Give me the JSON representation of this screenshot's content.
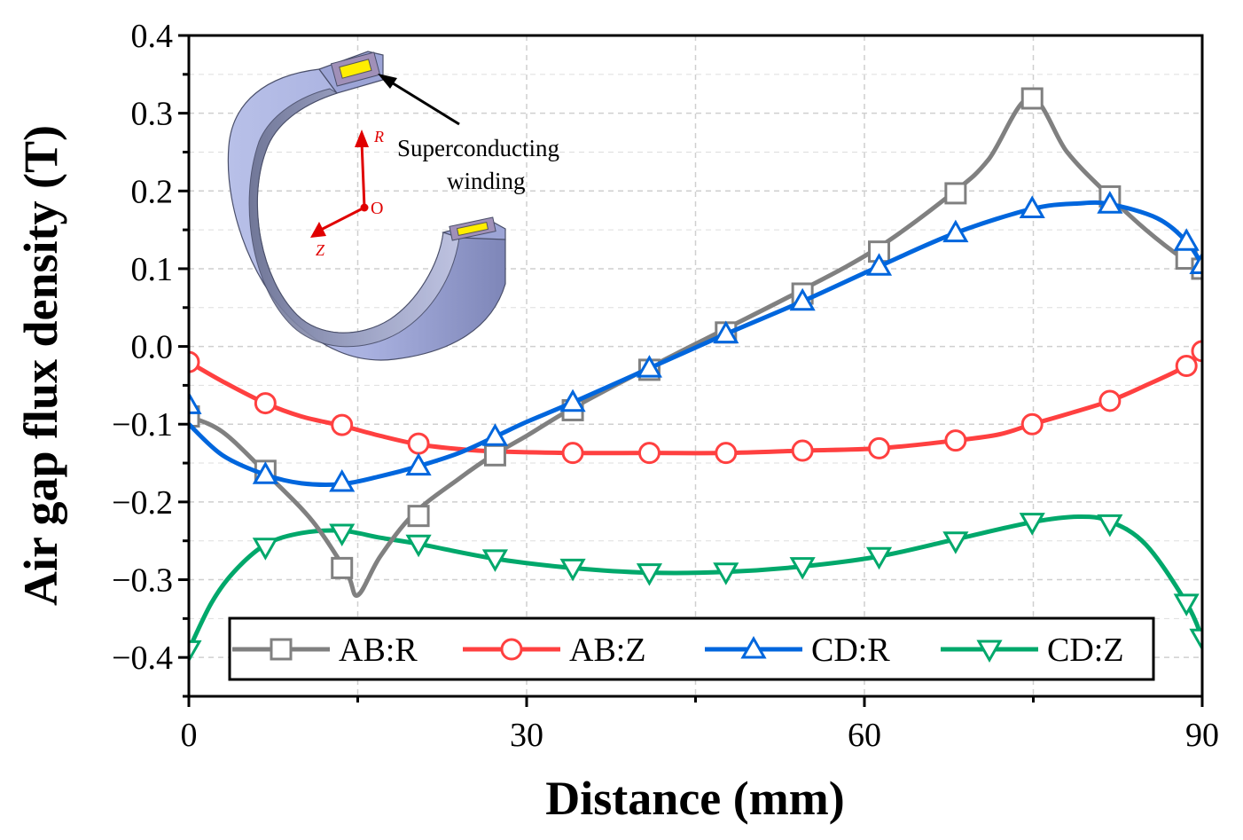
{
  "chart_data": {
    "type": "line",
    "title": "",
    "xlabel": "Distance (mm)",
    "ylabel": "Air gap flux density (T)",
    "xlim": [
      0,
      90
    ],
    "ylim": [
      -0.45,
      0.4
    ],
    "x_ticks": [
      0,
      30,
      60,
      90
    ],
    "x_tick_labels": [
      "0",
      "30",
      "60",
      "90"
    ],
    "y_ticks": [
      -0.4,
      -0.3,
      -0.2,
      -0.1,
      0.0,
      0.1,
      0.2,
      0.3,
      0.4
    ],
    "y_tick_labels": [
      "−0.4",
      "−0.3",
      "−0.2",
      "−0.1",
      "0.0",
      "0.1",
      "0.2",
      "0.3",
      "0.4"
    ],
    "grid": true,
    "legend_position": "bottom",
    "series": [
      {
        "name": "AB:R",
        "color": "#808080",
        "marker": "square",
        "curve": [
          [
            0,
            -0.09
          ],
          [
            3,
            -0.11
          ],
          [
            7,
            -0.165
          ],
          [
            11,
            -0.225
          ],
          [
            14,
            -0.29
          ],
          [
            15,
            -0.32
          ],
          [
            17,
            -0.27
          ],
          [
            20,
            -0.215
          ],
          [
            24,
            -0.17
          ],
          [
            27,
            -0.14
          ],
          [
            30,
            -0.115
          ],
          [
            34,
            -0.08
          ],
          [
            40.5,
            -0.03
          ],
          [
            47.3,
            0.02
          ],
          [
            54.1,
            0.07
          ],
          [
            61,
            0.125
          ],
          [
            67.8,
            0.197
          ],
          [
            71,
            0.24
          ],
          [
            74.7,
            0.32
          ],
          [
            78,
            0.25
          ],
          [
            81.5,
            0.197
          ],
          [
            85,
            0.15
          ],
          [
            88.3,
            0.113
          ],
          [
            90,
            0.1
          ]
        ],
        "markers": [
          [
            0,
            -0.09
          ],
          [
            6.8,
            -0.16
          ],
          [
            13.6,
            -0.285
          ],
          [
            20.4,
            -0.218
          ],
          [
            27.2,
            -0.14
          ],
          [
            34.1,
            -0.082
          ],
          [
            40.9,
            -0.03
          ],
          [
            47.7,
            0.018
          ],
          [
            54.5,
            0.068
          ],
          [
            61.3,
            0.122
          ],
          [
            68.1,
            0.197
          ],
          [
            74.9,
            0.319
          ],
          [
            81.8,
            0.193
          ],
          [
            88.6,
            0.113
          ],
          [
            90,
            0.1
          ]
        ]
      },
      {
        "name": "AB:Z",
        "color": "#ff4040",
        "marker": "circle",
        "curve": [
          [
            0,
            -0.02
          ],
          [
            3,
            -0.045
          ],
          [
            6.8,
            -0.073
          ],
          [
            10,
            -0.09
          ],
          [
            13.6,
            -0.102
          ],
          [
            17,
            -0.115
          ],
          [
            20.4,
            -0.126
          ],
          [
            24,
            -0.132
          ],
          [
            27.2,
            -0.135
          ],
          [
            34,
            -0.137
          ],
          [
            40.9,
            -0.137
          ],
          [
            47.7,
            -0.137
          ],
          [
            54.5,
            -0.134
          ],
          [
            61.3,
            -0.131
          ],
          [
            68.1,
            -0.121
          ],
          [
            72,
            -0.113
          ],
          [
            74.9,
            -0.1
          ],
          [
            78,
            -0.087
          ],
          [
            81.8,
            -0.07
          ],
          [
            85,
            -0.05
          ],
          [
            88.6,
            -0.025
          ],
          [
            90,
            -0.006
          ]
        ],
        "markers": [
          [
            0,
            -0.02
          ],
          [
            6.8,
            -0.073
          ],
          [
            13.6,
            -0.101
          ],
          [
            20.4,
            -0.125
          ],
          [
            27.2,
            -0.136
          ],
          [
            34.1,
            -0.137
          ],
          [
            40.9,
            -0.137
          ],
          [
            47.7,
            -0.137
          ],
          [
            54.5,
            -0.134
          ],
          [
            61.3,
            -0.131
          ],
          [
            68.1,
            -0.121
          ],
          [
            74.9,
            -0.1
          ],
          [
            81.8,
            -0.07
          ],
          [
            88.6,
            -0.025
          ],
          [
            90,
            -0.006
          ]
        ]
      },
      {
        "name": "CD:R",
        "color": "#0066dd",
        "marker": "triangle-up",
        "curve": [
          [
            0,
            -0.1
          ],
          [
            3,
            -0.14
          ],
          [
            6.8,
            -0.165
          ],
          [
            10,
            -0.176
          ],
          [
            13.6,
            -0.177
          ],
          [
            17,
            -0.167
          ],
          [
            20.4,
            -0.154
          ],
          [
            24,
            -0.137
          ],
          [
            27.2,
            -0.116
          ],
          [
            30,
            -0.097
          ],
          [
            34.1,
            -0.072
          ],
          [
            40.9,
            -0.028
          ],
          [
            47.7,
            0.016
          ],
          [
            54.5,
            0.058
          ],
          [
            61.3,
            0.103
          ],
          [
            68.1,
            0.146
          ],
          [
            74.9,
            0.177
          ],
          [
            79,
            0.184
          ],
          [
            81.8,
            0.183
          ],
          [
            86,
            0.165
          ],
          [
            88.6,
            0.135
          ],
          [
            90,
            0.105
          ]
        ],
        "markers": [
          [
            0,
            -0.075
          ],
          [
            6.8,
            -0.165
          ],
          [
            13.6,
            -0.175
          ],
          [
            20.4,
            -0.154
          ],
          [
            27.2,
            -0.116
          ],
          [
            34.1,
            -0.072
          ],
          [
            40.9,
            -0.028
          ],
          [
            47.7,
            0.016
          ],
          [
            54.5,
            0.058
          ],
          [
            61.3,
            0.103
          ],
          [
            68.1,
            0.146
          ],
          [
            74.9,
            0.177
          ],
          [
            81.8,
            0.183
          ],
          [
            88.6,
            0.135
          ],
          [
            90,
            0.105
          ]
        ]
      },
      {
        "name": "CD:Z",
        "color": "#00a86b",
        "marker": "triangle-down",
        "curve": [
          [
            0,
            -0.39
          ],
          [
            2,
            -0.33
          ],
          [
            4,
            -0.29
          ],
          [
            6.8,
            -0.255
          ],
          [
            10,
            -0.24
          ],
          [
            13.6,
            -0.237
          ],
          [
            17,
            -0.246
          ],
          [
            20.4,
            -0.254
          ],
          [
            27.2,
            -0.273
          ],
          [
            34.1,
            -0.285
          ],
          [
            40.9,
            -0.291
          ],
          [
            47.7,
            -0.29
          ],
          [
            54.5,
            -0.283
          ],
          [
            61.3,
            -0.27
          ],
          [
            68.1,
            -0.248
          ],
          [
            74.9,
            -0.226
          ],
          [
            79,
            -0.219
          ],
          [
            81.8,
            -0.225
          ],
          [
            85,
            -0.255
          ],
          [
            88.6,
            -0.33
          ],
          [
            90,
            -0.375
          ]
        ],
        "markers": [
          [
            0,
            -0.39
          ],
          [
            6.8,
            -0.258
          ],
          [
            13.6,
            -0.24
          ],
          [
            20.4,
            -0.254
          ],
          [
            27.2,
            -0.273
          ],
          [
            34.1,
            -0.285
          ],
          [
            40.9,
            -0.291
          ],
          [
            47.7,
            -0.29
          ],
          [
            54.5,
            -0.283
          ],
          [
            61.3,
            -0.27
          ],
          [
            68.1,
            -0.25
          ],
          [
            74.9,
            -0.226
          ],
          [
            81.8,
            -0.228
          ],
          [
            88.6,
            -0.33
          ],
          [
            90,
            -0.375
          ]
        ]
      }
    ]
  },
  "inset": {
    "annotation_line1": "Superconducting",
    "annotation_line2": "winding",
    "axis_r": "R",
    "axis_z": "Z",
    "axis_o": "O"
  }
}
